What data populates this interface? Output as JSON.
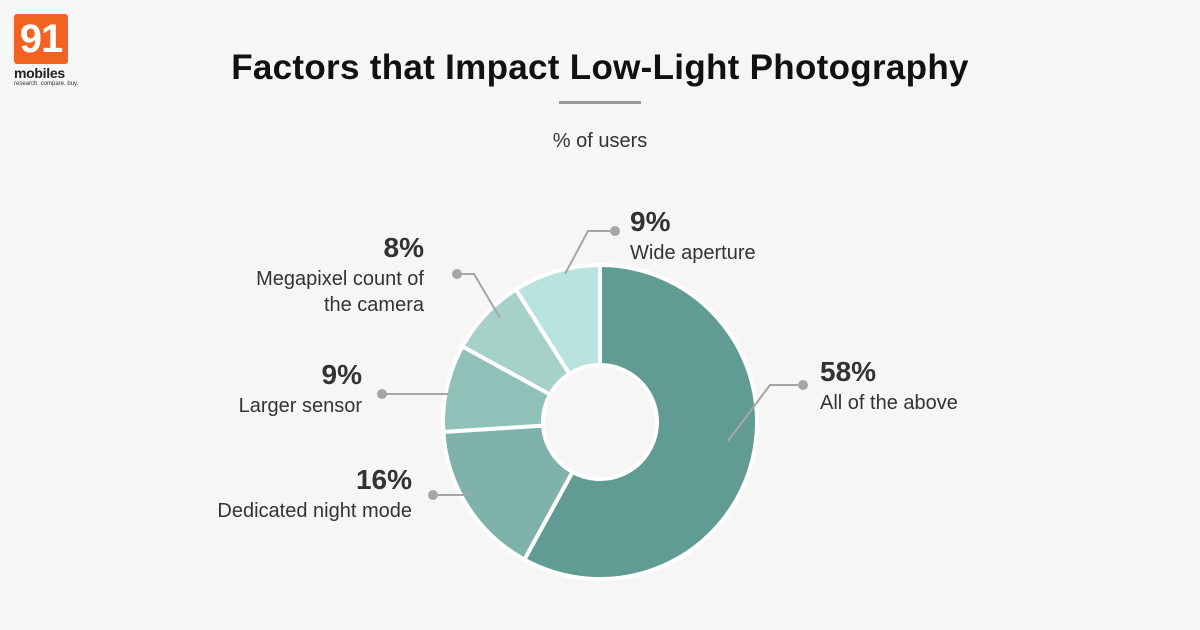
{
  "brand": {
    "logo_number": "91",
    "logo_word": "mobiles",
    "logo_tagline": "research. compare. buy."
  },
  "header": {
    "title": "Factors that Impact Low-Light Photography",
    "subtitle": "% of users"
  },
  "colors": {
    "background": "#f6f6f6",
    "leader": "#a6a6a6",
    "slice_border": "#ffffff"
  },
  "chart_data": {
    "type": "pie",
    "donut": true,
    "title": "Factors that Impact Low-Light Photography",
    "subtitle": "% of users",
    "legend": "none",
    "slices": [
      {
        "label": "All of the above",
        "value": 58,
        "display": "58%",
        "color": "#609c93"
      },
      {
        "label": "Dedicated night mode",
        "value": 16,
        "display": "16%",
        "color": "#7fb2aa"
      },
      {
        "label": "Larger sensor",
        "value": 9,
        "display": "9%",
        "color": "#8fc1b9"
      },
      {
        "label": "Megapixel count of the camera",
        "value": 8,
        "display": "8%",
        "color": "#a5d1c9"
      },
      {
        "label": "Wide aperture",
        "value": 9,
        "display": "9%",
        "color": "#b9e3de"
      }
    ]
  }
}
